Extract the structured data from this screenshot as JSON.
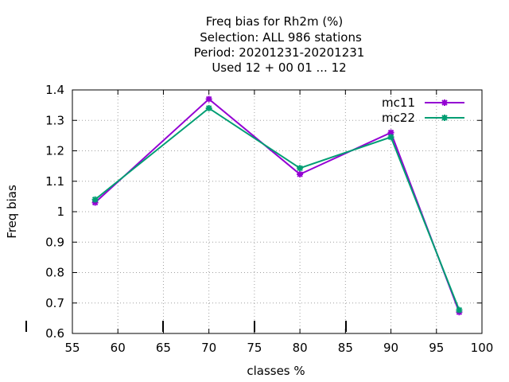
{
  "chart_data": {
    "type": "line",
    "title": [
      "Freq bias  for Rh2m (%)",
      "Selection: ALL    986 stations",
      "Period: 20201231-20201231",
      "Used  12 + 00 01 ... 12"
    ],
    "xlabel": "classes %",
    "ylabel": "Freq bias",
    "xlim": [
      55,
      100
    ],
    "ylim": [
      0.6,
      1.4
    ],
    "xticks": [
      55,
      60,
      65,
      70,
      75,
      80,
      85,
      90,
      95,
      100
    ],
    "yticks": [
      0.6,
      0.7,
      0.8,
      0.9,
      1,
      1.1,
      1.2,
      1.3,
      1.4
    ],
    "ytick_labels": [
      "0.6",
      "0.7",
      "0.8",
      "0.9",
      "1",
      "1.1",
      "1.2",
      "1.3",
      "1.4"
    ],
    "grid": true,
    "legend_position": "top-right",
    "series": [
      {
        "name": "mc11",
        "color": "#9400d3",
        "x": [
          57.5,
          70,
          80,
          90,
          97.5
        ],
        "y": [
          1.03,
          1.37,
          1.123,
          1.26,
          0.67
        ]
      },
      {
        "name": "mc22",
        "color": "#009e73",
        "x": [
          57.5,
          70,
          80,
          90,
          97.5
        ],
        "y": [
          1.04,
          1.34,
          1.143,
          1.245,
          0.677
        ]
      }
    ]
  }
}
